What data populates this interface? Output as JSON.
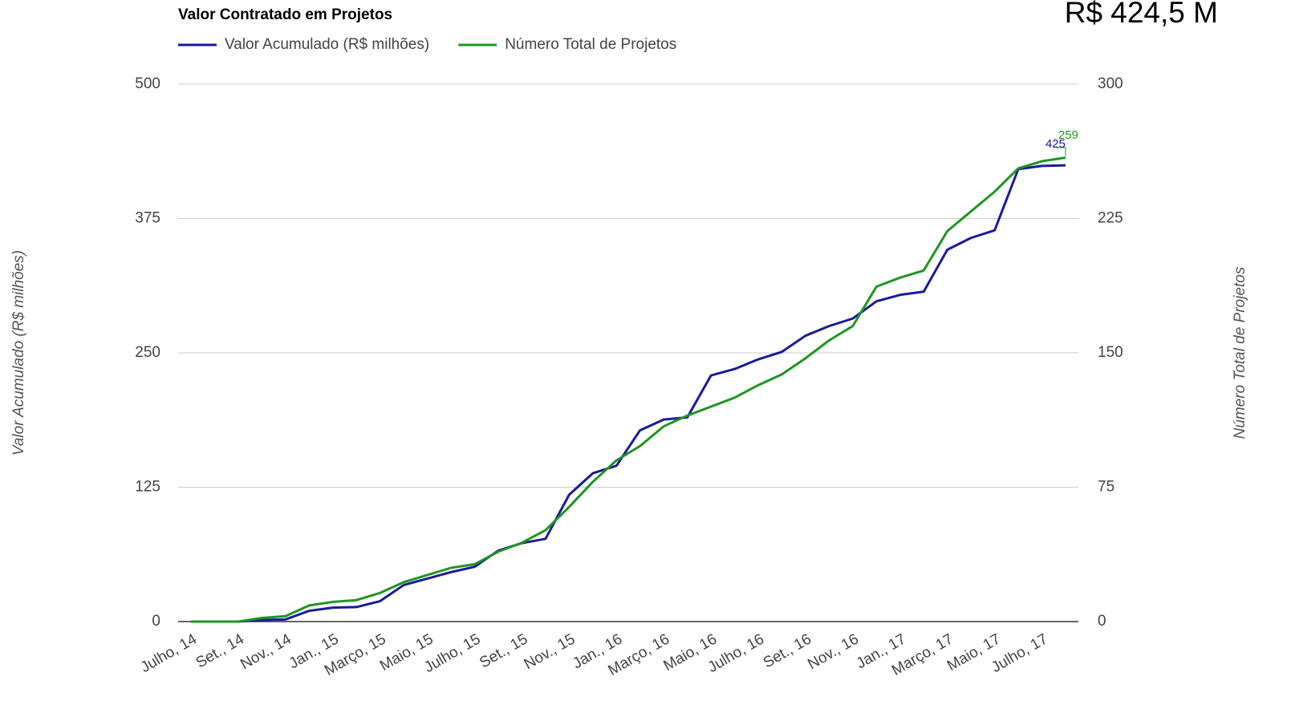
{
  "chart_data": {
    "type": "line",
    "title": "Valor Contratado em Projetos",
    "annotation": "R$ 424,5 M",
    "ylabel": "Valor Acumulado (R$ milhões)",
    "y2label": "Número Total de Projetos",
    "categories": [
      "Julho, 14",
      null,
      "Set., 14",
      null,
      "Nov., 14",
      null,
      "Jan., 15",
      null,
      "Março, 15",
      null,
      "Maio, 15",
      null,
      "Julho, 15",
      null,
      "Set., 15",
      null,
      "Nov., 15",
      null,
      "Jan., 16",
      null,
      "Março, 16",
      null,
      "Maio, 16",
      null,
      "Julho, 16",
      null,
      "Set., 16",
      null,
      "Nov., 16",
      null,
      "Jan., 17",
      null,
      "Março, 17",
      null,
      "Maio, 17",
      null,
      "Julho, 17",
      null
    ],
    "series": [
      {
        "name": "Valor Acumulado (R$ milhões)",
        "color": "#1a1a9c",
        "axis": "y",
        "values": [
          0,
          0,
          0,
          1.5,
          2,
          10,
          13,
          13.5,
          19,
          34,
          40,
          46,
          51,
          66,
          73,
          77,
          118,
          138,
          145,
          178,
          188,
          190,
          229,
          235,
          244,
          251,
          266,
          275,
          282,
          298,
          304,
          307,
          346,
          357,
          364,
          421,
          424,
          424.5
        ],
        "last_label": "425"
      },
      {
        "name": "Número Total de Projetos",
        "color": "#1e9620",
        "axis": "y2",
        "values": [
          0,
          0,
          0,
          2,
          3,
          9,
          11,
          12,
          16,
          22,
          26,
          30,
          32,
          39,
          44,
          51,
          64,
          78,
          90,
          98,
          109,
          115,
          120,
          125,
          132,
          138,
          147,
          157,
          165,
          187,
          192,
          196,
          218,
          229,
          240,
          253,
          257,
          259
        ],
        "last_label": "259"
      }
    ],
    "ylim": [
      0,
      500
    ],
    "yticks": [
      0,
      125,
      250,
      375,
      500
    ],
    "y2lim": [
      0,
      300
    ],
    "y2ticks": [
      0,
      75,
      150,
      225,
      300
    ],
    "grid": true
  }
}
